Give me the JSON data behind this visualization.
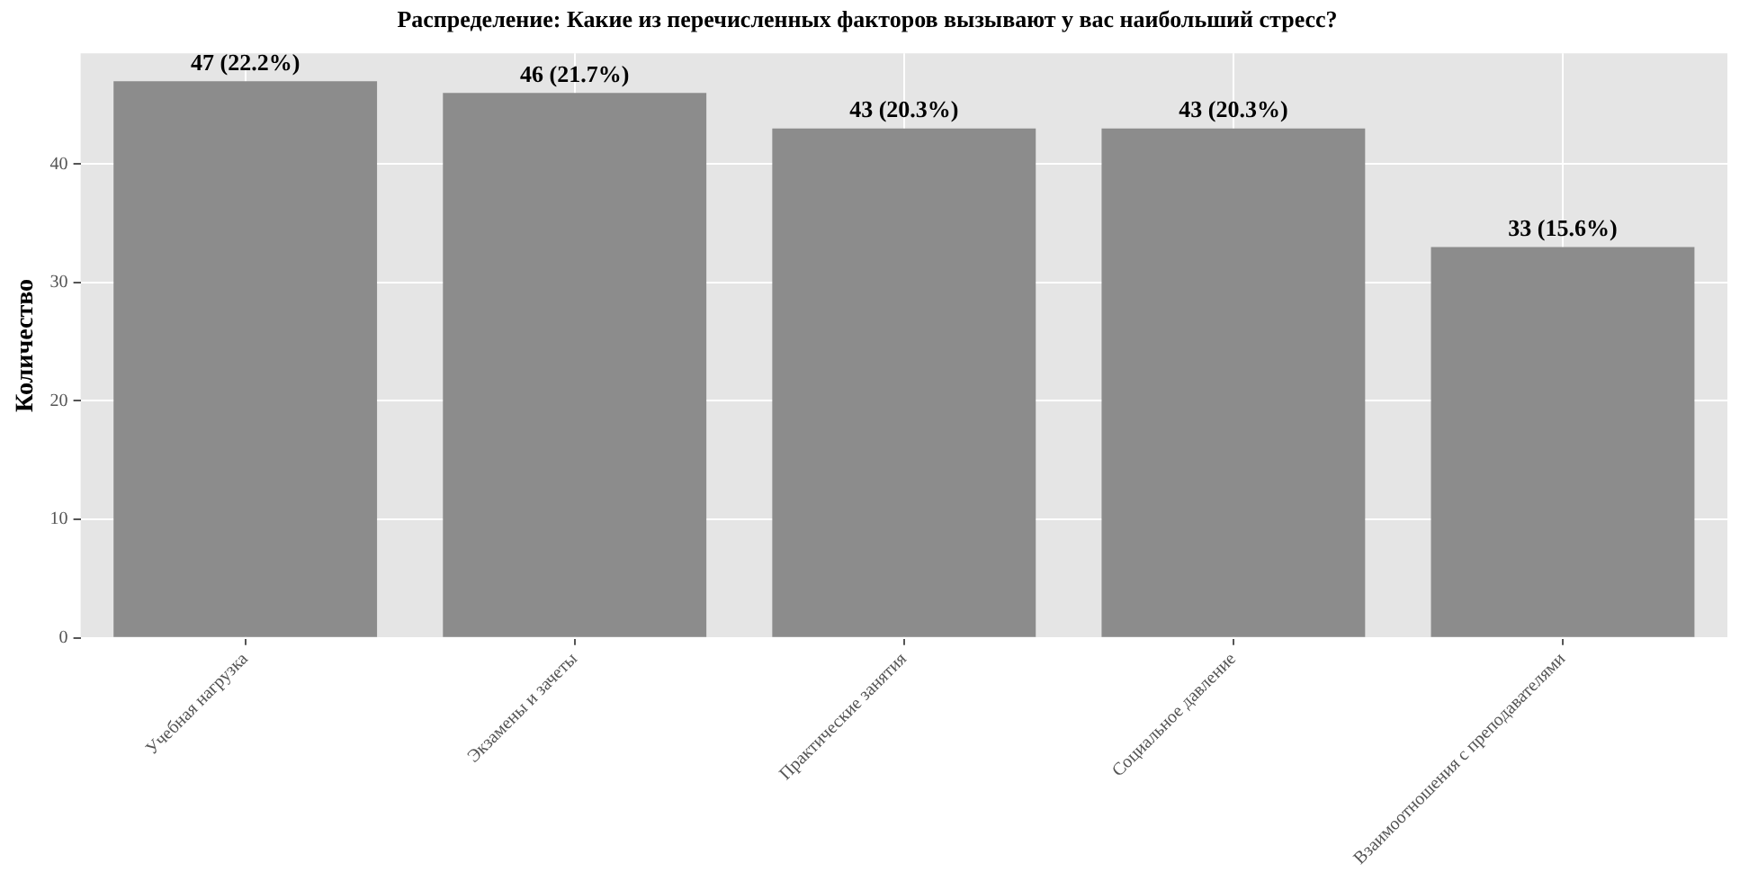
{
  "chart_data": {
    "type": "bar",
    "title": "Распределение: Какие из перечисленных факторов вызывают у вас наибольший стресс?",
    "ylabel": "Количество",
    "categories": [
      "Учебная нагрузка",
      "Экзамены и зачеты",
      "Практические занятия",
      "Социальное давление",
      "Взаимоотношения с преподавателями"
    ],
    "values": [
      47,
      46,
      43,
      43,
      33
    ],
    "color": "#8c8c8c",
    "value_labels": [
      "47 (22.2%)",
      "46 (21.7%)",
      "43 (20.3%)",
      "43 (20.3%)",
      "33 (15.6%)"
    ],
    "ylim": [
      0,
      49.35
    ],
    "yticks": [
      0,
      10,
      20,
      30,
      40
    ],
    "grid": true
  }
}
